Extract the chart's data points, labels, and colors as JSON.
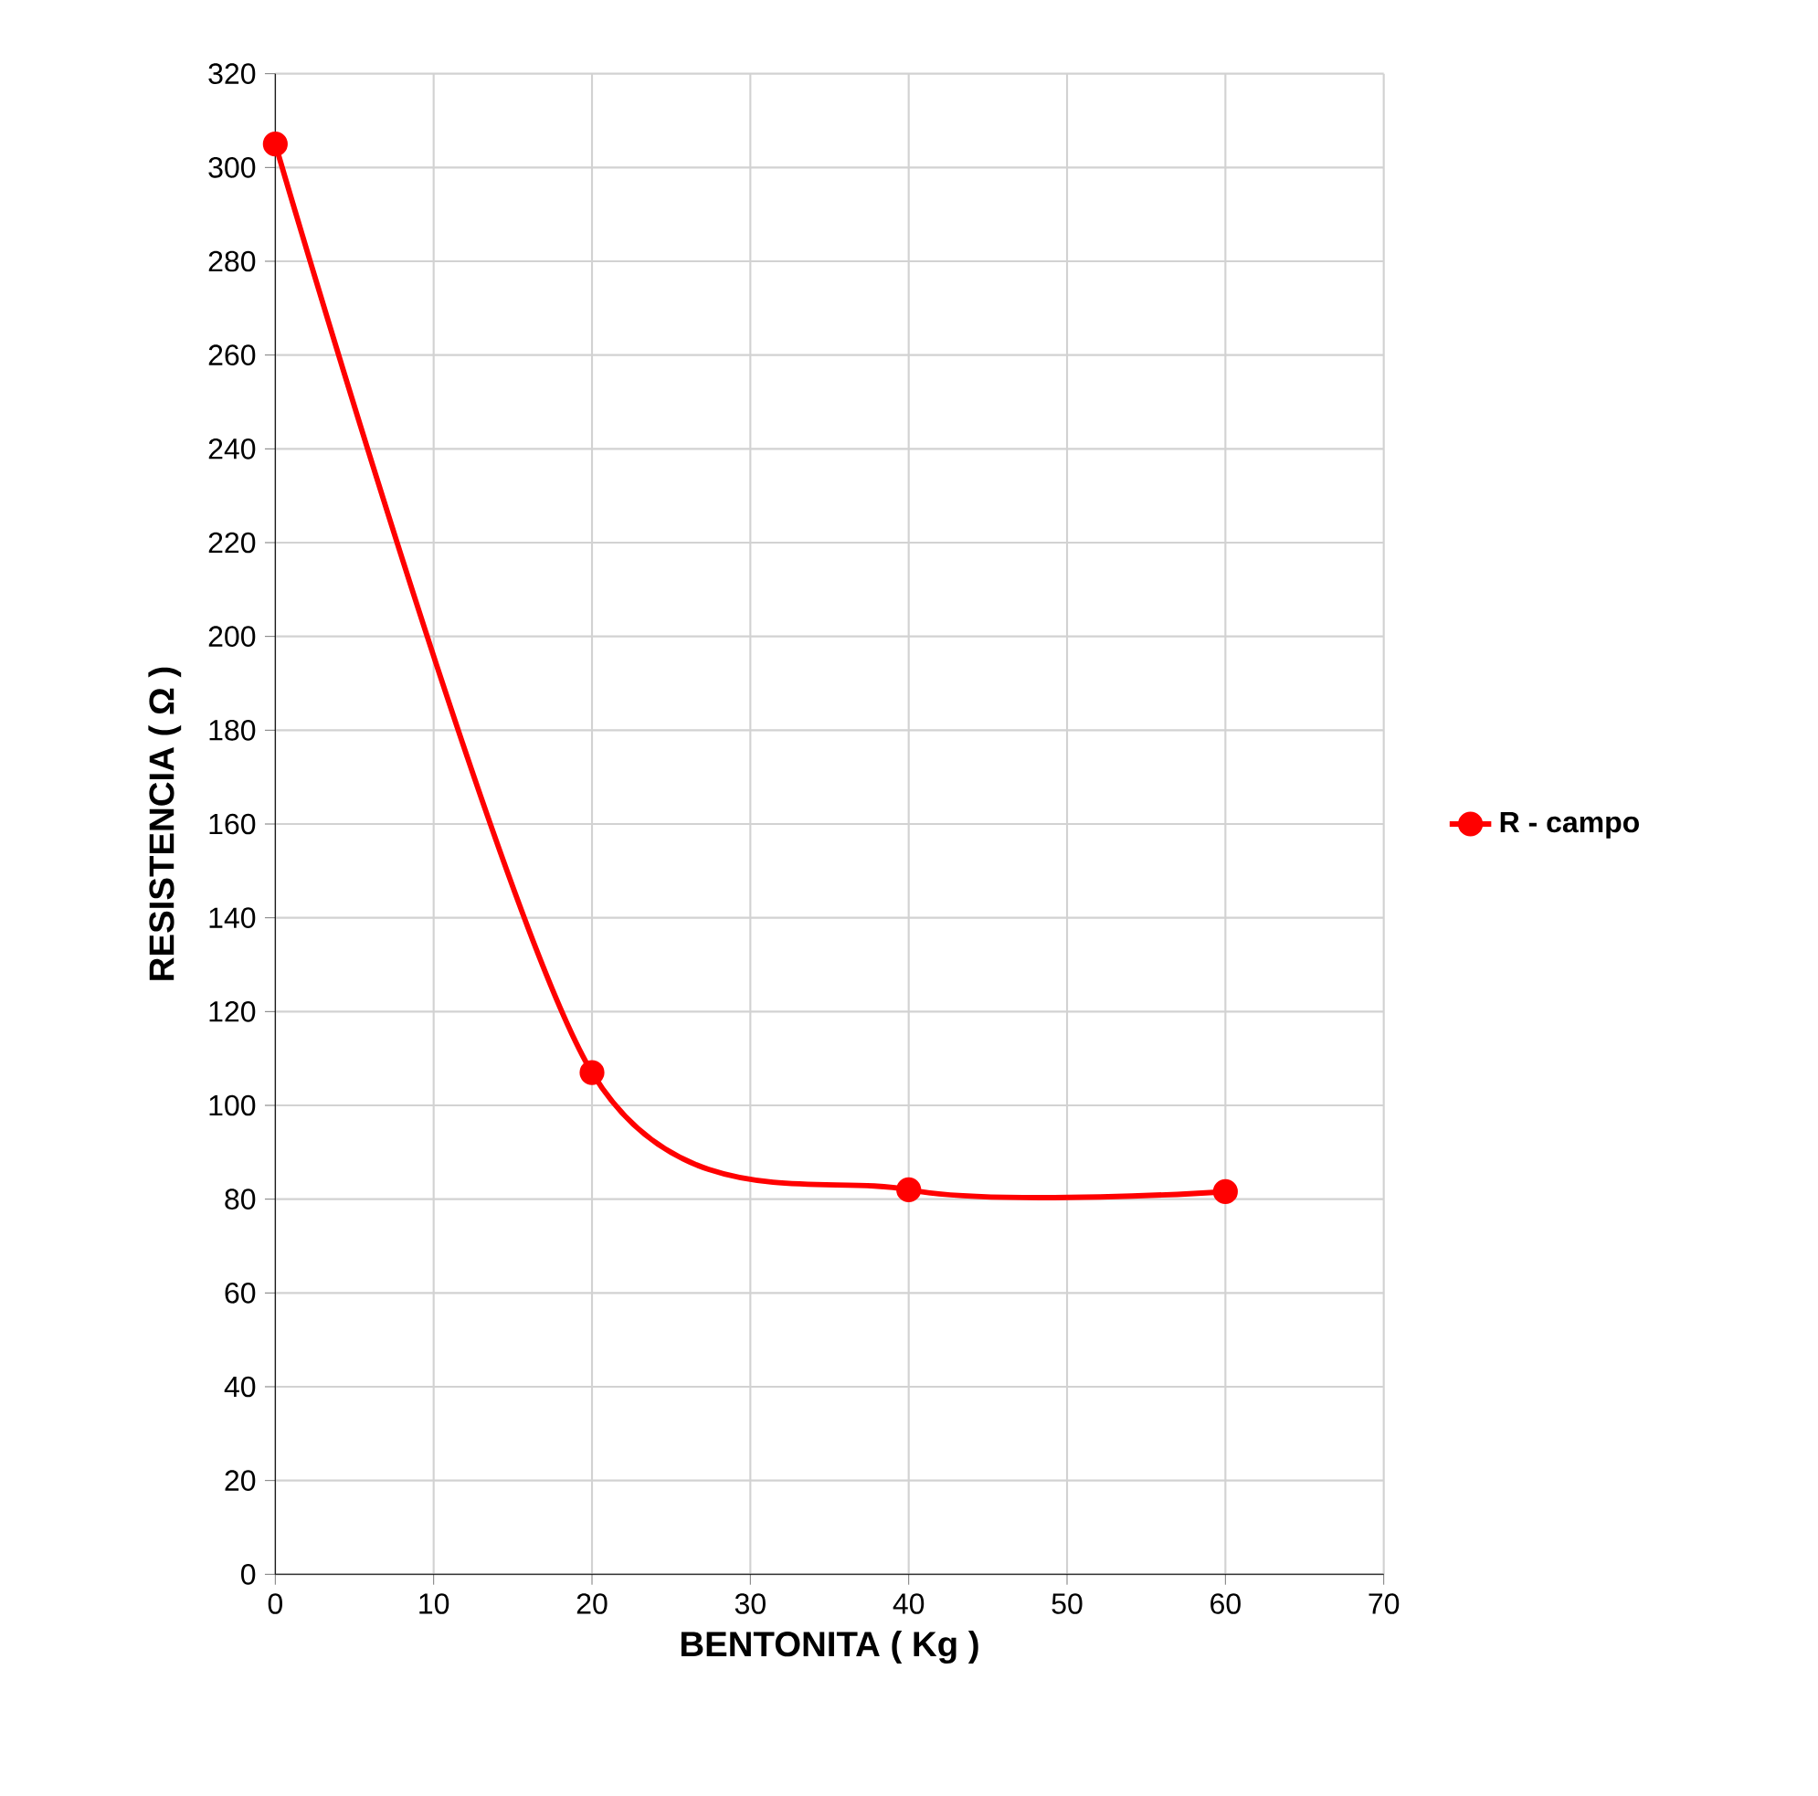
{
  "chart_data": {
    "type": "line",
    "xlabel": "BENTONITA  ( Kg )",
    "ylabel": "RESISTENCIA  ( Ω )",
    "x": [
      0,
      20,
      40,
      60
    ],
    "series": [
      {
        "name": "R - campo",
        "color": "#ff0000",
        "values": [
          305,
          107,
          82,
          81.6
        ]
      }
    ],
    "xlim": [
      0,
      70
    ],
    "xticks": [
      0,
      10,
      20,
      30,
      40,
      50,
      60,
      70
    ],
    "ylim": [
      0,
      320
    ],
    "yticks": [
      0,
      20,
      40,
      60,
      80,
      100,
      120,
      140,
      160,
      180,
      200,
      220,
      240,
      260,
      280,
      300,
      320
    ],
    "grid": true,
    "legend": "right",
    "marker": "circle",
    "line_style": "solid"
  }
}
